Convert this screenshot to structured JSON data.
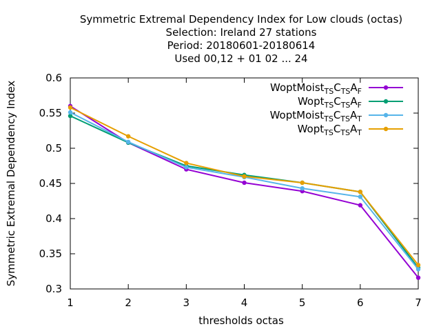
{
  "chart_data": {
    "type": "line",
    "title_lines": [
      "Symmetric Extremal Dependency Index  for Low clouds (octas)",
      "Selection: Ireland     27 stations",
      "Period: 20180601-20180614",
      "Used  00,12  + 01 02 ... 24"
    ],
    "xlabel": "thresholds octas",
    "ylabel": "Symmetric Extremal Dependency Index",
    "x": [
      1,
      2,
      3,
      4,
      5,
      6,
      7
    ],
    "xlim": [
      1,
      7
    ],
    "ylim": [
      0.3,
      0.6
    ],
    "x_ticks": [
      "1",
      "2",
      "3",
      "4",
      "5",
      "6",
      "7"
    ],
    "y_ticks": [
      "0.3",
      "0.35",
      "0.4",
      "0.45",
      "0.5",
      "0.55",
      "0.6"
    ],
    "grid": false,
    "legend_position": "top-right",
    "series": [
      {
        "name_base": "WoptMoist",
        "name_parts": [
          [
            "TS",
            "C"
          ],
          [
            "TS",
            "A"
          ],
          [
            "F",
            ""
          ]
        ],
        "color": "#9400d3",
        "values": [
          0.56,
          0.508,
          0.47,
          0.451,
          0.439,
          0.419,
          0.316
        ]
      },
      {
        "name_base": "Wopt",
        "name_parts": [
          [
            "TS",
            "C"
          ],
          [
            "TS",
            "A"
          ],
          [
            "F",
            ""
          ]
        ],
        "color": "#009e73",
        "values": [
          0.546,
          0.508,
          0.475,
          0.462,
          0.451,
          0.438,
          0.33
        ]
      },
      {
        "name_base": "WoptMoist",
        "name_parts": [
          [
            "TS",
            "C"
          ],
          [
            "TS",
            "A"
          ],
          [
            "T",
            ""
          ]
        ],
        "color": "#56b4e9",
        "values": [
          0.551,
          0.509,
          0.473,
          0.459,
          0.443,
          0.431,
          0.328
        ]
      },
      {
        "name_base": "Wopt",
        "name_parts": [
          [
            "TS",
            "C"
          ],
          [
            "TS",
            "A"
          ],
          [
            "T",
            ""
          ]
        ],
        "color": "#e69f00",
        "values": [
          0.558,
          0.517,
          0.479,
          0.46,
          0.451,
          0.438,
          0.334
        ]
      }
    ]
  }
}
